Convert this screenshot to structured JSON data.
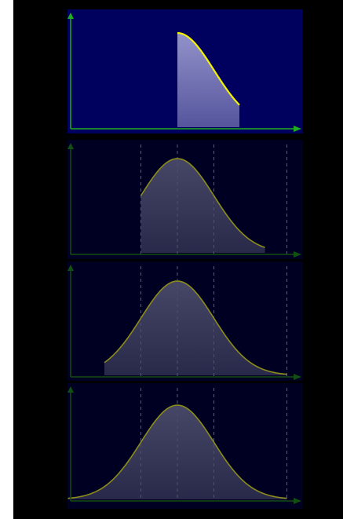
{
  "colors": {
    "background": "#000000",
    "left_strip": "#ffffff",
    "active_panel_bg": "#00005e",
    "panel_bg": "#000022",
    "axis": "#1fae1f",
    "axis_dim": "#124f12",
    "curve_active": "#f2f200",
    "curve_dim": "#8c8c1a",
    "fill_active": "#9a9ad0",
    "fill_dim": "#4a4a6a",
    "gridline": "#5c5c78"
  },
  "panels": [
    {
      "id": "panel-1",
      "active": true,
      "show_gridlines": false,
      "truncate_left_sigma": 0.0
    },
    {
      "id": "panel-2",
      "active": false,
      "show_gridlines": true,
      "truncate_left_sigma": -1.0
    },
    {
      "id": "panel-3",
      "active": false,
      "show_gridlines": true,
      "truncate_left_sigma": -2.0
    },
    {
      "id": "panel-4",
      "active": false,
      "show_gridlines": true,
      "truncate_left_sigma": -3.0
    }
  ],
  "chart_data": {
    "type": "area",
    "description_free": true,
    "curve": "normal_density",
    "mean": 0,
    "sd": 1,
    "x_range_sigma": [
      -3,
      3
    ],
    "gridline_sigma": [
      -1,
      0,
      1,
      3
    ]
  }
}
